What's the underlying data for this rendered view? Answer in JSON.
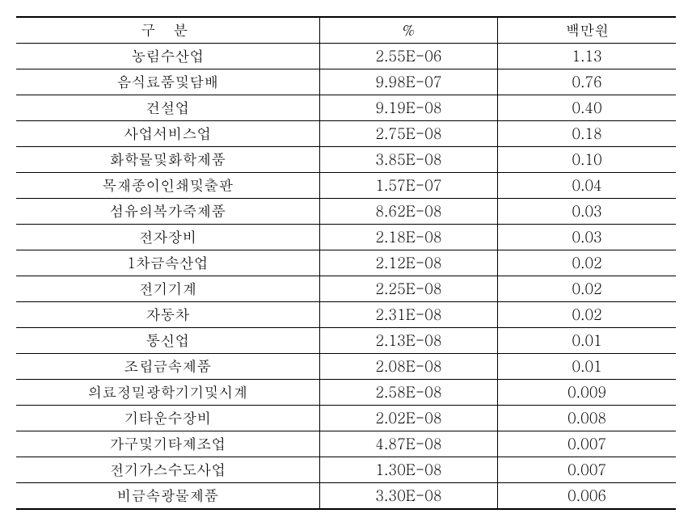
{
  "table": {
    "background_color": "#ffffff",
    "text_color": "#000000",
    "border_color": "#000000",
    "font_size": 18,
    "columns": [
      "구  분",
      "%",
      "백만원"
    ],
    "rows": [
      {
        "label": "농림수산업",
        "percent": "2.55E-06",
        "value": "1.13"
      },
      {
        "label": "음식료품및담배",
        "percent": "9.98E-07",
        "value": "0.76"
      },
      {
        "label": "건설업",
        "percent": "9.19E-08",
        "value": "0.40"
      },
      {
        "label": "사업서비스업",
        "percent": "2.75E-08",
        "value": "0.18"
      },
      {
        "label": "화학물및화학제품",
        "percent": "3.85E-08",
        "value": "0.10"
      },
      {
        "label": "목재종이인쇄및출판",
        "percent": "1.57E-07",
        "value": "0.04"
      },
      {
        "label": "섬유의복가죽제품",
        "percent": "8.62E-08",
        "value": "0.03"
      },
      {
        "label": "전자장비",
        "percent": "2.18E-08",
        "value": "0.03"
      },
      {
        "label": "1차금속산업",
        "percent": "2.12E-08",
        "value": "0.02"
      },
      {
        "label": "전기기계",
        "percent": "2.25E-08",
        "value": "0.02"
      },
      {
        "label": "자동차",
        "percent": "2.31E-08",
        "value": "0.02"
      },
      {
        "label": "통신업",
        "percent": "2.13E-08",
        "value": "0.01"
      },
      {
        "label": "조립금속제품",
        "percent": "2.08E-08",
        "value": "0.01"
      },
      {
        "label": "의료정밀광학기기및시계",
        "percent": "2.58E-08",
        "value": "0.009"
      },
      {
        "label": "기타운수장비",
        "percent": "2.02E-08",
        "value": "0.008"
      },
      {
        "label": "가구및기타제조업",
        "percent": "4.87E-08",
        "value": "0.007"
      },
      {
        "label": "전기가스수도사업",
        "percent": "1.30E-08",
        "value": "0.007"
      },
      {
        "label": "비금속광물제품",
        "percent": "3.30E-08",
        "value": "0.006"
      }
    ]
  }
}
